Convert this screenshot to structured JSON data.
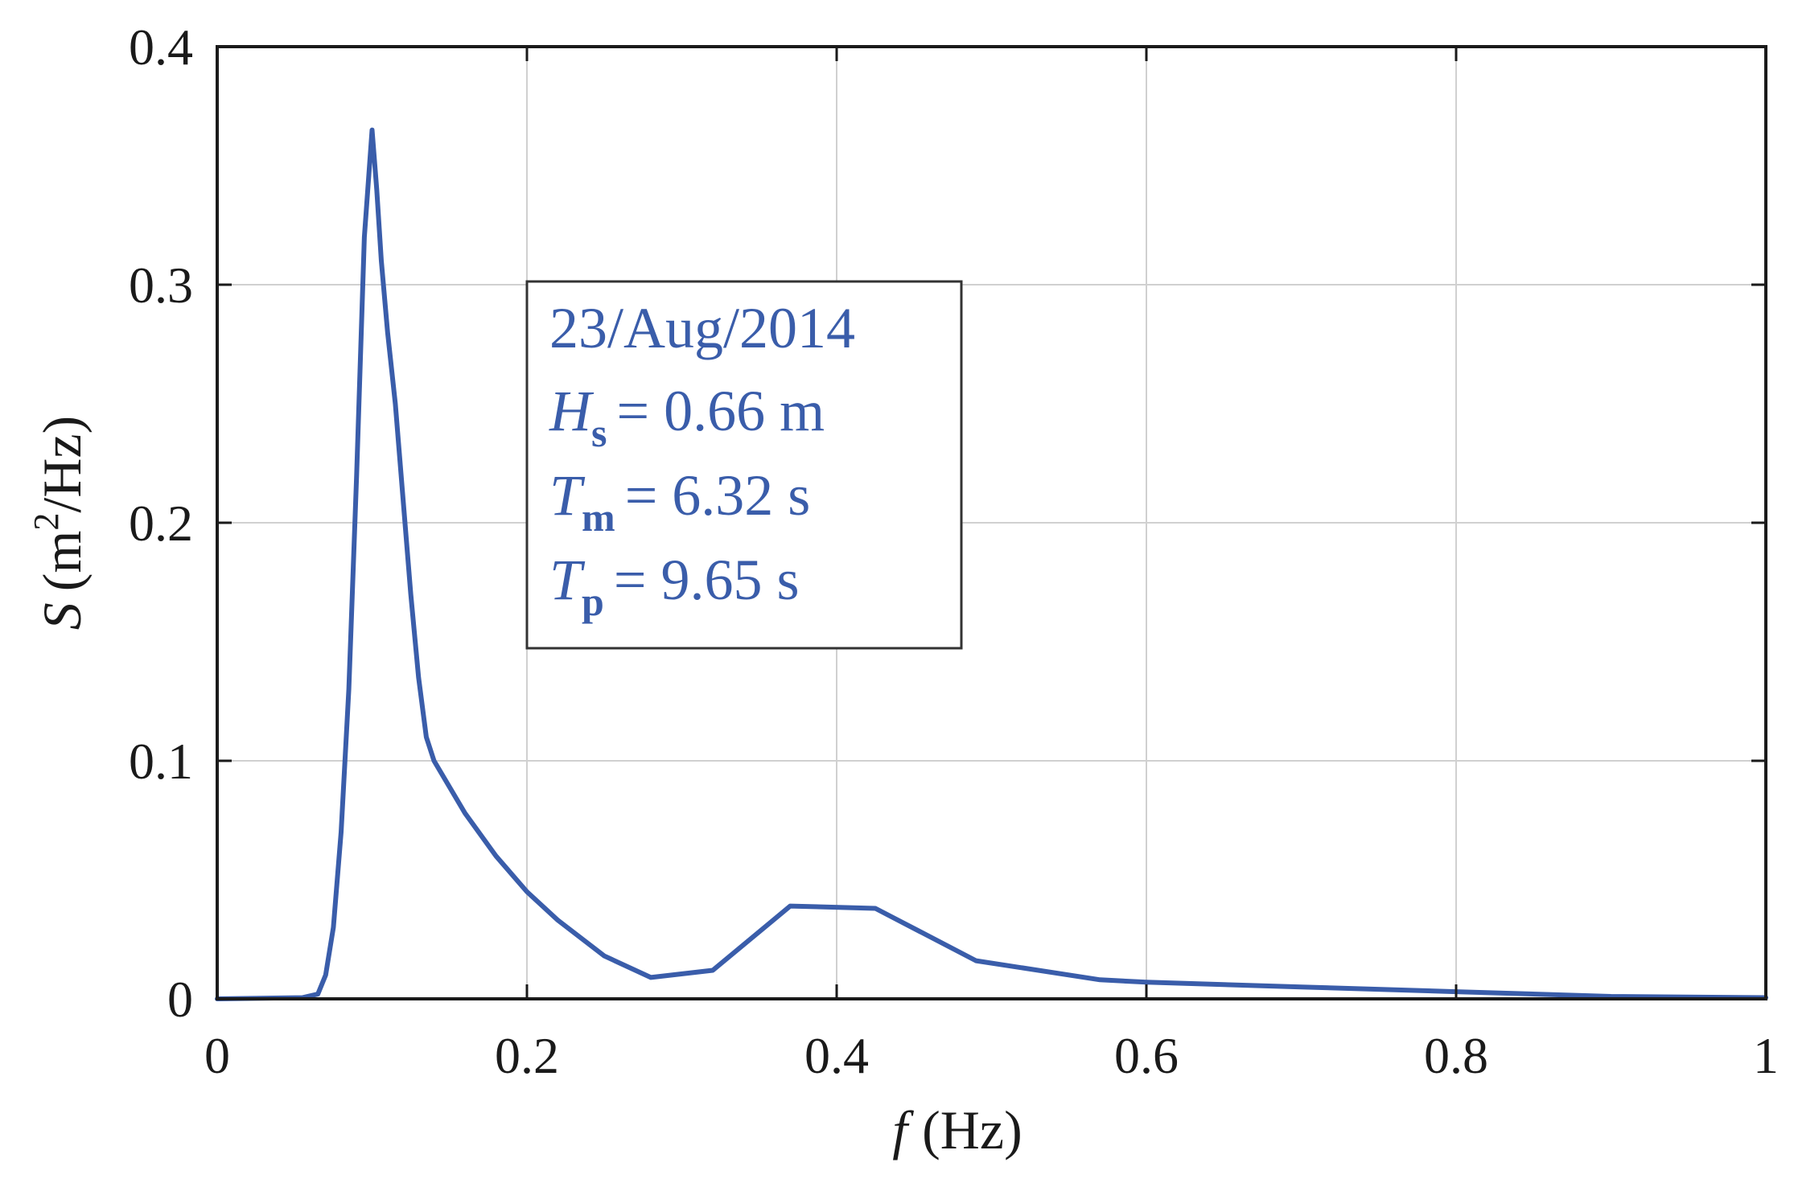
{
  "chart_data": {
    "type": "line",
    "title": "",
    "xlabel": {
      "symbol": "f",
      "unit": "(Hz)"
    },
    "ylabel": {
      "symbol": "S",
      "unit_open": "(m",
      "unit_sup": "2",
      "unit_close": "/Hz)"
    },
    "xlim": [
      0,
      1
    ],
    "ylim": [
      0,
      0.4
    ],
    "x_ticks": [
      0,
      0.2,
      0.4,
      0.6,
      0.8,
      1
    ],
    "x_tick_labels": [
      "0",
      "0.2",
      "0.4",
      "0.6",
      "0.8",
      "1"
    ],
    "y_ticks": [
      0,
      0.1,
      0.2,
      0.3,
      0.4
    ],
    "y_tick_labels": [
      "0",
      "0.1",
      "0.2",
      "0.3",
      "0.4"
    ],
    "grid": true,
    "series_color": "#3a5daa",
    "series": [
      {
        "x": [
          0.0,
          0.055,
          0.065,
          0.07,
          0.075,
          0.08,
          0.085,
          0.09,
          0.095,
          0.1,
          0.103,
          0.106,
          0.11,
          0.115,
          0.12,
          0.125,
          0.13,
          0.135,
          0.14,
          0.16,
          0.18,
          0.2,
          0.22,
          0.25,
          0.28,
          0.32,
          0.37,
          0.425,
          0.49,
          0.57,
          0.6,
          0.7,
          0.8,
          0.9,
          1.0
        ],
        "y": [
          0.0,
          0.0005,
          0.002,
          0.01,
          0.03,
          0.07,
          0.13,
          0.22,
          0.32,
          0.365,
          0.34,
          0.31,
          0.28,
          0.25,
          0.21,
          0.17,
          0.135,
          0.11,
          0.1,
          0.078,
          0.06,
          0.045,
          0.033,
          0.018,
          0.009,
          0.012,
          0.039,
          0.038,
          0.016,
          0.008,
          0.007,
          0.005,
          0.003,
          0.001,
          0.0005
        ]
      }
    ],
    "annotation_box": {
      "date": "23/Aug/2014",
      "lines": [
        {
          "symbol": "H",
          "sub": "s",
          "value": "= 0.66 m"
        },
        {
          "symbol": "T",
          "sub": "m",
          "value": "= 6.32 s"
        },
        {
          "symbol": "T",
          "sub": "p",
          "value": "= 9.65 s"
        }
      ]
    }
  }
}
